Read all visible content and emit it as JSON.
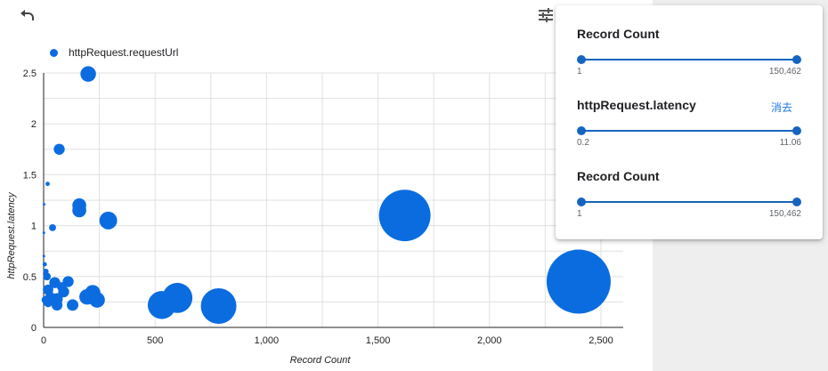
{
  "toolbar": {
    "undo_icon": "undo-icon",
    "filter_icon": "tune-icon"
  },
  "colors": {
    "bubble": "#0b6ce0",
    "accent": "#1565c0",
    "link": "#1a73e8",
    "grid": "#e0e0e0"
  },
  "chart_data": {
    "type": "scatter",
    "title": "",
    "xlabel": "Record Count",
    "ylabel": "httpRequest.latency",
    "xlim": [
      0,
      2600
    ],
    "ylim": [
      0,
      2.5
    ],
    "x_ticks": [
      0,
      500,
      1000,
      1500,
      2000,
      2500
    ],
    "x_tick_labels": [
      "0",
      "500",
      "1,000",
      "1,500",
      "2,000",
      "2,500"
    ],
    "y_ticks": [
      0,
      0.5,
      1,
      1.5,
      2,
      2.5
    ],
    "y_tick_labels": [
      "0",
      "0.5",
      "1",
      "1.5",
      "2",
      "2.5"
    ],
    "grid": true,
    "legend_position": "top-left",
    "series": [
      {
        "name": "httpRequest.requestUrl",
        "points": [
          {
            "x": 200,
            "y": 2.49,
            "size": 200
          },
          {
            "x": 70,
            "y": 1.75,
            "size": 100
          },
          {
            "x": 18,
            "y": 1.41,
            "size": 15
          },
          {
            "x": 2,
            "y": 1.21,
            "size": 6
          },
          {
            "x": 160,
            "y": 1.2,
            "size": 160
          },
          {
            "x": 160,
            "y": 1.15,
            "size": 160
          },
          {
            "x": 290,
            "y": 1.05,
            "size": 260
          },
          {
            "x": 40,
            "y": 0.98,
            "size": 40
          },
          {
            "x": 1,
            "y": 0.93,
            "size": 4
          },
          {
            "x": 1,
            "y": 0.7,
            "size": 4
          },
          {
            "x": 1620,
            "y": 1.1,
            "size": 2200
          },
          {
            "x": 2400,
            "y": 0.45,
            "size": 3400
          },
          {
            "x": 5,
            "y": 0.62,
            "size": 15
          },
          {
            "x": 10,
            "y": 0.55,
            "size": 25
          },
          {
            "x": 15,
            "y": 0.5,
            "size": 50
          },
          {
            "x": 50,
            "y": 0.44,
            "size": 100
          },
          {
            "x": 110,
            "y": 0.45,
            "size": 100
          },
          {
            "x": 80,
            "y": 0.4,
            "size": 70
          },
          {
            "x": 20,
            "y": 0.37,
            "size": 90
          },
          {
            "x": 30,
            "y": 0.3,
            "size": 80
          },
          {
            "x": 90,
            "y": 0.35,
            "size": 100
          },
          {
            "x": 60,
            "y": 0.28,
            "size": 110
          },
          {
            "x": 10,
            "y": 0.27,
            "size": 60
          },
          {
            "x": 20,
            "y": 0.24,
            "size": 60
          },
          {
            "x": 60,
            "y": 0.22,
            "size": 100
          },
          {
            "x": 130,
            "y": 0.22,
            "size": 110
          },
          {
            "x": 195,
            "y": 0.3,
            "size": 200
          },
          {
            "x": 220,
            "y": 0.34,
            "size": 200
          },
          {
            "x": 240,
            "y": 0.27,
            "size": 200
          },
          {
            "x": 530,
            "y": 0.22,
            "size": 650
          },
          {
            "x": 600,
            "y": 0.29,
            "size": 750
          },
          {
            "x": 785,
            "y": 0.21,
            "size": 1050
          }
        ]
      }
    ]
  },
  "filter_panel": {
    "filters": [
      {
        "title": "Record Count",
        "min_label": "1",
        "max_label": "150,462",
        "min_frac": 0.0,
        "max_frac": 1.0,
        "clear_label": ""
      },
      {
        "title": "httpRequest.latency",
        "min_label": "0.2",
        "max_label": "11.06",
        "min_frac": 0.0,
        "max_frac": 1.0,
        "clear_label": "消去"
      },
      {
        "title": "Record Count",
        "min_label": "1",
        "max_label": "150,462",
        "min_frac": 0.0,
        "max_frac": 1.0,
        "clear_label": ""
      }
    ]
  }
}
